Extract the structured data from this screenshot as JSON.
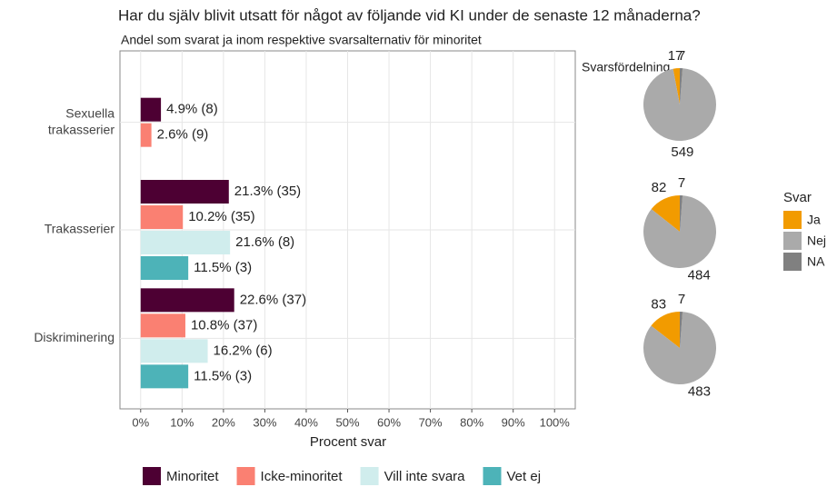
{
  "chart_data": {
    "type": "bar",
    "orientation": "horizontal",
    "title": "Har du själv blivit utsatt för något av följande vid KI under de senaste 12 månaderna?",
    "subtitle": "Andel som svarat ja inom respektive svarsalternativ för minoritet",
    "xlabel": "Procent svar",
    "categories": [
      "Sexuella\ntrakasserier",
      "Trakasserier",
      "Diskriminering"
    ],
    "series": [
      {
        "name": "Minoritet",
        "color": "#4d0033",
        "values": [
          4.9,
          21.3,
          22.6
        ],
        "value_labels": [
          "4.9% (8)",
          "21.3% (35)",
          "22.6% (37)"
        ]
      },
      {
        "name": "Icke-minoritet",
        "color": "#fa8072",
        "values": [
          2.6,
          10.2,
          10.8
        ],
        "value_labels": [
          "2.6% (9)",
          "10.2% (35)",
          "10.8% (37)"
        ]
      },
      {
        "name": "Vill inte svara",
        "color": "#d0eded",
        "values": [
          null,
          21.6,
          16.2
        ],
        "value_labels": [
          null,
          "21.6% (8)",
          "16.2% (6)"
        ]
      },
      {
        "name": "Vet ej",
        "color": "#4db3b8",
        "values": [
          null,
          11.5,
          11.5
        ],
        "value_labels": [
          null,
          "11.5% (3)",
          "11.5% (3)"
        ]
      }
    ],
    "xlim": [
      -5,
      105
    ],
    "xticks": [
      {
        "value": 0,
        "label": "0%"
      },
      {
        "value": 10,
        "label": "10%"
      },
      {
        "value": 20,
        "label": "20%"
      },
      {
        "value": 30,
        "label": "30%"
      },
      {
        "value": 40,
        "label": "40%"
      },
      {
        "value": 50,
        "label": "50%"
      },
      {
        "value": 60,
        "label": "60%"
      },
      {
        "value": 70,
        "label": "70%"
      },
      {
        "value": 80,
        "label": "80%"
      },
      {
        "value": 90,
        "label": "90%"
      },
      {
        "value": 100,
        "label": "100%"
      }
    ],
    "grid": true,
    "pies": {
      "type": "pie",
      "title": "Svarsfördelning",
      "legend_title": "Svar",
      "labels": [
        "Ja",
        "Nej",
        "NA"
      ],
      "colors": [
        "#f29b00",
        "#aaaaaa",
        "#808080"
      ],
      "values": [
        [
          17,
          549,
          7
        ],
        [
          82,
          484,
          7
        ],
        [
          83,
          483,
          7
        ]
      ]
    }
  }
}
